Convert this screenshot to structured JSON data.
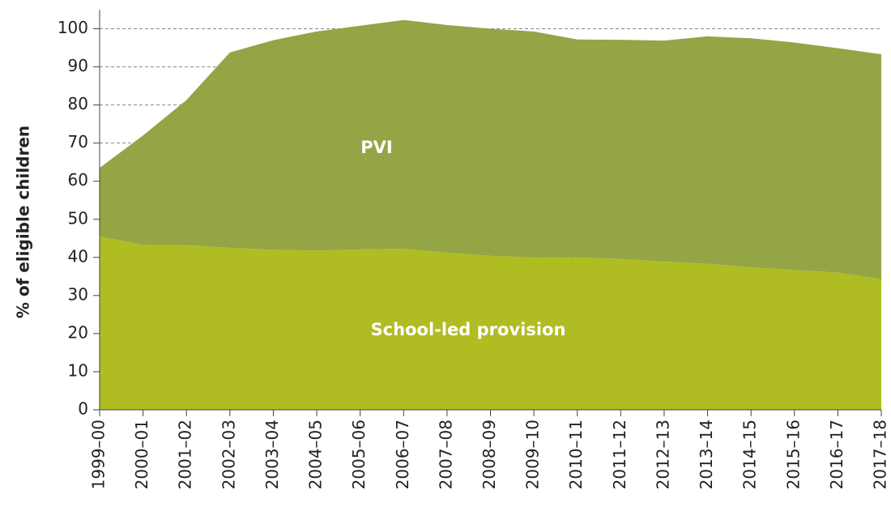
{
  "chart_data": {
    "type": "stacked_area",
    "y_label": "% of eligible children",
    "categories": [
      "1999–00",
      "2000–01",
      "2001–02",
      "2002–03",
      "2003–04",
      "2004–05",
      "2005–06",
      "2006–07",
      "2007–08",
      "2008–09",
      "2009–10",
      "2010–11",
      "2011–12",
      "2012–13",
      "2013–14",
      "2014–15",
      "2015–16",
      "2016–17",
      "2017–18"
    ],
    "series": [
      {
        "name": "School-led provision",
        "color": "#afbd22",
        "values": [
          45.5,
          43.3,
          43.2,
          42.5,
          42,
          41.8,
          42.1,
          42.3,
          41.2,
          40.4,
          40,
          40,
          39.6,
          38.9,
          38.3,
          37.4,
          36.7,
          36,
          34.3
        ]
      },
      {
        "name": "PVI",
        "color": "#93a545",
        "values": [
          18,
          28.7,
          38.1,
          51.3,
          55,
          57.5,
          58.7,
          60,
          59.8,
          59.6,
          59.3,
          57.2,
          57.5,
          58,
          59.7,
          60.1,
          59.7,
          58.9,
          59
        ]
      }
    ],
    "ylim": [
      0,
      105
    ],
    "yticks": [
      0,
      10,
      20,
      30,
      40,
      50,
      60,
      70,
      80,
      90,
      100
    ],
    "grid": true
  }
}
